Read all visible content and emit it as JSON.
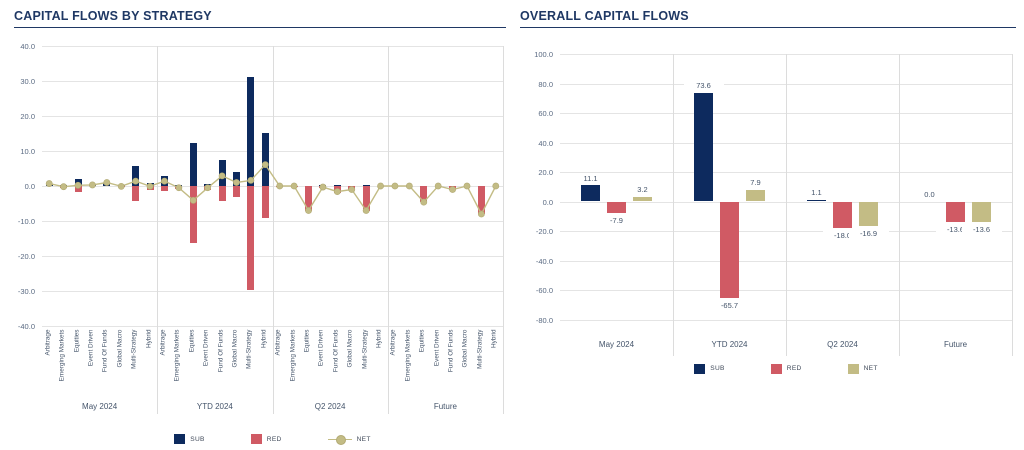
{
  "left_panel": {
    "title": "CAPITAL FLOWS BY STRATEGY"
  },
  "right_panel": {
    "title": "OVERALL CAPITAL FLOWS"
  },
  "colors": {
    "title": "#1f3864",
    "axis_text": "#44546a",
    "ytick_text": "#5a6a82",
    "grid": "#e4e4e4",
    "separator": "#dcdcdc",
    "sub": "#0d2a5e",
    "red": "#d05a64",
    "net": "#c3bc85",
    "net_stroke": "#b2aa74"
  },
  "chart_data": [
    {
      "type": "bar",
      "title": "CAPITAL FLOWS BY STRATEGY",
      "groups": [
        "May 2024",
        "YTD 2024",
        "Q2 2024",
        "Future"
      ],
      "categories_per_group": [
        "Arbitrage",
        "Emerging Markets",
        "Equities",
        "Event Driven",
        "Fund Of Funds",
        "Global Macro",
        "Multi-Strategy",
        "Hybrid"
      ],
      "ylim": [
        -40,
        40
      ],
      "yticks": [
        "40.0",
        "30.0",
        "20.0",
        "10.0",
        "0.0",
        "-10.0",
        "-20.0",
        "-30.0",
        "-40.0"
      ],
      "grid": true,
      "legend_position": "bottom",
      "series": [
        {
          "name": "SUB",
          "type": "bar",
          "color": "#0d2a5e",
          "values": [
            [
              0.7,
              0.3,
              2.0,
              0.3,
              1.0,
              0.3,
              5.6,
              0.9
            ],
            [
              2.8,
              0.3,
              12.3,
              0.6,
              7.3,
              4.0,
              31.2,
              15.1
            ],
            [
              0.1,
              0.1,
              0.0,
              0.2,
              0.4,
              0.1,
              0.2,
              0.0
            ],
            [
              0.0,
              0.0,
              0.0,
              0.0,
              0.0,
              0.0,
              0.0,
              0.0
            ]
          ]
        },
        {
          "name": "RED",
          "type": "bar",
          "color": "#d05a64",
          "values": [
            [
              0.0,
              -0.5,
              -1.8,
              0.0,
              0.0,
              -0.4,
              -4.2,
              -1.0
            ],
            [
              -1.4,
              -0.8,
              -16.4,
              -1.1,
              -4.4,
              -3.0,
              -29.6,
              -9.0
            ],
            [
              -0.1,
              -0.1,
              -7.0,
              -0.5,
              -2.0,
              -1.1,
              -7.2,
              0.0
            ],
            [
              0.0,
              0.0,
              -4.6,
              0.0,
              -1.0,
              0.0,
              -8.0,
              0.0
            ]
          ]
        },
        {
          "name": "NET",
          "type": "line",
          "color": "#c3bc85",
          "values": [
            [
              0.7,
              -0.2,
              0.2,
              0.3,
              1.0,
              -0.1,
              1.4,
              -0.1
            ],
            [
              1.4,
              -0.5,
              -4.1,
              -0.5,
              2.9,
              1.0,
              1.6,
              6.1
            ],
            [
              0.0,
              0.0,
              -7.0,
              -0.3,
              -1.6,
              -1.0,
              -7.0,
              0.0
            ],
            [
              0.0,
              0.0,
              -4.6,
              0.0,
              -1.0,
              0.0,
              -8.0,
              0.0
            ]
          ]
        }
      ],
      "legend": [
        {
          "label": "SUB",
          "marker": "square",
          "color": "#0d2a5e"
        },
        {
          "label": "RED",
          "marker": "square",
          "color": "#d05a64"
        },
        {
          "label": "NET",
          "marker": "line-dot",
          "color": "#c3bc85"
        }
      ]
    },
    {
      "type": "bar",
      "title": "OVERALL CAPITAL FLOWS",
      "categories": [
        "May 2024",
        "YTD 2024",
        "Q2 2024",
        "Future"
      ],
      "ylim": [
        -80,
        100
      ],
      "yticks": [
        "100.0",
        "80.0",
        "60.0",
        "40.0",
        "20.0",
        "0.0",
        "-20.0",
        "-40.0",
        "-60.0",
        "-80.0"
      ],
      "grid": true,
      "data_labels": true,
      "legend_position": "bottom",
      "series": [
        {
          "name": "SUB",
          "color": "#0d2a5e",
          "values": [
            11.1,
            73.6,
            1.1,
            0.0
          ]
        },
        {
          "name": "RED",
          "color": "#d05a64",
          "values": [
            -7.9,
            -65.7,
            -18.0,
            -13.6
          ]
        },
        {
          "name": "NET",
          "color": "#c3bc85",
          "values": [
            3.2,
            7.9,
            -16.9,
            -13.6
          ]
        }
      ],
      "legend": [
        {
          "label": "SUB",
          "marker": "square",
          "color": "#0d2a5e"
        },
        {
          "label": "RED",
          "marker": "square",
          "color": "#d05a64"
        },
        {
          "label": "NET",
          "marker": "square",
          "color": "#c3bc85"
        }
      ]
    }
  ]
}
